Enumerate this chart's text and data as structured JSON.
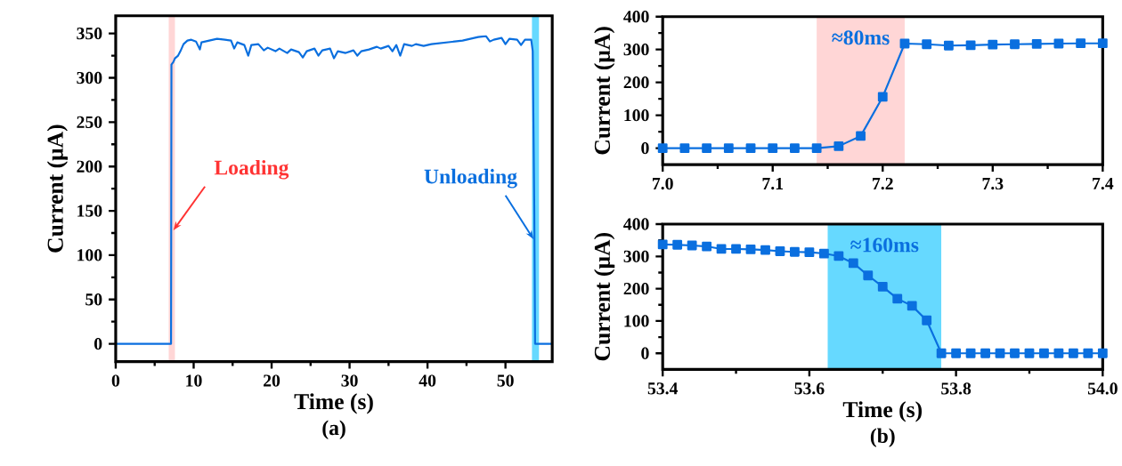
{
  "chart_data": [
    {
      "type": "line",
      "title": "(a)",
      "xlabel": "Time (s)",
      "ylabel": "Current (μA)",
      "xlim": [
        0,
        56
      ],
      "ylim": [
        -20,
        370
      ],
      "xticks": [
        0,
        10,
        20,
        30,
        40,
        50
      ],
      "yticks": [
        0,
        50,
        100,
        150,
        200,
        250,
        300,
        350
      ],
      "color": "#0a6fdf",
      "marker": "none",
      "x": [
        0,
        3,
        6,
        7.1,
        7.15,
        7.4,
        7.6,
        8.0,
        8.3,
        8.7,
        9.2,
        9.7,
        10.3,
        10.8,
        11.0,
        12.0,
        13.0,
        14.0,
        14.8,
        15.2,
        15.6,
        16.5,
        17.0,
        17.4,
        18.3,
        19.0,
        19.5,
        20.5,
        21.0,
        22.0,
        22.5,
        23.5,
        24.0,
        24.5,
        25.5,
        26.0,
        26.5,
        27.5,
        28.0,
        28.5,
        29.5,
        30.5,
        31.0,
        31.5,
        32.5,
        33.5,
        34.0,
        35.0,
        35.5,
        36.0,
        36.5,
        37.0,
        38.0,
        38.5,
        39.5,
        40.5,
        41.5,
        42.5,
        43.5,
        44.5,
        45.5,
        46.5,
        47.5,
        48.0,
        48.5,
        49.5,
        50.0,
        50.5,
        51.5,
        52.0,
        52.5,
        53.3,
        53.5,
        53.7,
        53.8,
        55,
        56
      ],
      "values": [
        0,
        0,
        0,
        0,
        315,
        318,
        322,
        325,
        330,
        338,
        342,
        343,
        341,
        332,
        340,
        342,
        344,
        343,
        342,
        333,
        340,
        337,
        325,
        337,
        338,
        331,
        334,
        330,
        333,
        328,
        332,
        329,
        323,
        330,
        333,
        325,
        331,
        333,
        322,
        330,
        328,
        331,
        325,
        330,
        332,
        335,
        333,
        336,
        330,
        337,
        325,
        338,
        336,
        338,
        336,
        338,
        339,
        340,
        341,
        342,
        344,
        346,
        347,
        341,
        343,
        345,
        338,
        344,
        343,
        337,
        343,
        343,
        330,
        150,
        0,
        0,
        0
      ],
      "bands": [
        {
          "axis": "x",
          "from": 6.8,
          "to": 7.6,
          "color": "#ffd6d6"
        },
        {
          "axis": "x",
          "from": 53.4,
          "to": 54.3,
          "color": "#66d9ff"
        }
      ],
      "annotations": [
        {
          "text": "Loading",
          "x": 7.4,
          "y": 128
        },
        {
          "text": "Unloading",
          "x": 53.6,
          "y": 118
        }
      ]
    },
    {
      "type": "line",
      "ylabel": "Current (μA)",
      "xlim": [
        7.0,
        7.4
      ],
      "ylim": [
        -50,
        400
      ],
      "xticks": [
        {
          "value": 7.0,
          "label": "7.0"
        },
        {
          "value": 7.1,
          "label": "7.1"
        },
        {
          "value": 7.2,
          "label": "7.2"
        },
        {
          "value": 7.3,
          "label": "7.3"
        },
        {
          "value": 7.4,
          "label": "7.4"
        }
      ],
      "yticks": [
        0,
        100,
        200,
        300,
        400
      ],
      "color": "#0a6fdf",
      "marker": "square",
      "x": [
        7.0,
        7.02,
        7.04,
        7.06,
        7.08,
        7.1,
        7.12,
        7.14,
        7.16,
        7.18,
        7.2,
        7.22,
        7.24,
        7.26,
        7.28,
        7.3,
        7.32,
        7.34,
        7.36,
        7.38,
        7.4
      ],
      "values": [
        0,
        0,
        0,
        0,
        0,
        0,
        0,
        0,
        6,
        37,
        156,
        318,
        316,
        312,
        313,
        315,
        316,
        317,
        318,
        319,
        319
      ],
      "bands": [
        {
          "axis": "x",
          "from": 7.14,
          "to": 7.22,
          "color": "#ffd6d6",
          "label": "≈80ms"
        }
      ]
    },
    {
      "type": "line",
      "title": "(b)",
      "xlabel": "Time (s)",
      "ylabel": "Current (μA)",
      "xlim": [
        53.4,
        54.0
      ],
      "ylim": [
        -50,
        400
      ],
      "xticks": [
        53.4,
        53.6,
        53.8,
        {
          "value": 54.0,
          "label": "54.0"
        }
      ],
      "yticks": [
        0,
        100,
        200,
        300,
        400
      ],
      "color": "#0a6fdf",
      "marker": "square",
      "x": [
        53.4,
        53.42,
        53.44,
        53.46,
        53.48,
        53.5,
        53.52,
        53.54,
        53.56,
        53.58,
        53.6,
        53.62,
        53.64,
        53.66,
        53.68,
        53.7,
        53.72,
        53.74,
        53.76,
        53.78,
        53.8,
        53.82,
        53.84,
        53.86,
        53.88,
        53.9,
        53.92,
        53.94,
        53.96,
        53.98,
        54.0
      ],
      "values": [
        337,
        336,
        334,
        331,
        323,
        323,
        322,
        320,
        316,
        314,
        313,
        309,
        301,
        279,
        241,
        206,
        169,
        147,
        102,
        0,
        0,
        0,
        0,
        0,
        0,
        0,
        0,
        0,
        0,
        0,
        0
      ],
      "bands": [
        {
          "axis": "x",
          "from": 53.625,
          "to": 53.78,
          "color": "#66d9ff",
          "label": "≈160ms"
        }
      ]
    }
  ]
}
